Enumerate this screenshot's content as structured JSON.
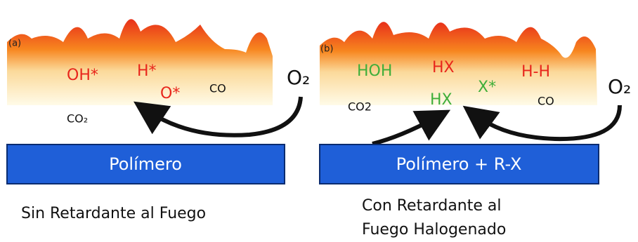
{
  "panels": [
    {
      "tag": "(a)",
      "species": [
        "OH*",
        "H*",
        "O*",
        "CO",
        "CO₂"
      ],
      "oxygen": "O₂",
      "material": "Polímero",
      "caption": [
        "Sin Retardante al Fuego"
      ]
    },
    {
      "tag": "(b)",
      "species": [
        "HOH",
        "HX",
        "X*",
        "H-H",
        "CO2",
        "HX",
        "CO"
      ],
      "oxygen": "O₂",
      "material": "Polímero + R-X",
      "caption": [
        "Con Retardante al",
        "Fuego Halogenado"
      ]
    }
  ]
}
